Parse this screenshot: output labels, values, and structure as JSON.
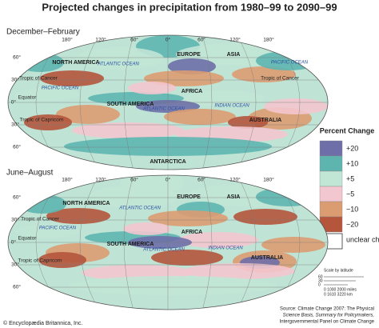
{
  "title": "Projected changes in precipitation from 1980–99 to 2090–99",
  "maps": [
    {
      "season": "December–February",
      "longitudes": [
        "180°",
        "120°",
        "60°",
        "0°",
        "60°",
        "120°",
        "180°"
      ],
      "latitudes": [
        "60°",
        "30°",
        "0°",
        "30°",
        "60°"
      ],
      "labels": [
        "NORTH AMERICA",
        "ATLANTIC OCEAN",
        "EUROPE",
        "ASIA",
        "PACIFIC OCEAN",
        "Tropic of Cancer",
        "Tropic of Cancer",
        "PACIFIC OCEAN",
        "Equator",
        "SOUTH AMERICA",
        "ATLANTIC OCEAN",
        "AFRICA",
        "INDIAN OCEAN",
        "AUSTRALIA",
        "Tropic of Capricorn",
        "ANTARCTICA"
      ]
    },
    {
      "season": "June–August",
      "longitudes": [
        "180°",
        "120°",
        "60°",
        "0°",
        "60°",
        "120°",
        "180°"
      ],
      "latitudes": [
        "60°",
        "30°",
        "0°",
        "30°",
        "60°"
      ],
      "labels": [
        "NORTH AMERICA",
        "ATLANTIC OCEAN",
        "EUROPE",
        "ASIA",
        "PACIFIC OCEAN",
        "Tropic of Cancer",
        "Equator",
        "SOUTH AMERICA",
        "ATLANTIC OCEAN",
        "AFRICA",
        "INDIAN OCEAN",
        "AUSTRALIA",
        "Tropic of Capricorn"
      ]
    }
  ],
  "legend": {
    "title": "Percent Change",
    "items": [
      "+20",
      "+10",
      "+5",
      "−5",
      "−10",
      "−20"
    ],
    "unclear": "unclear change"
  },
  "scale": {
    "title": "Scale by latitude",
    "latitudes": [
      "60",
      "30",
      "0"
    ],
    "miles": "0    1000  2000 miles",
    "km": "0    1610  3220 km"
  },
  "source": [
    "Source: Climate Change 2007: The Physical",
    "Science Basis, Summary for Policymakers,",
    "Intergovernmental Panel on Climate Change"
  ],
  "credit": "© Encyclopædia Britannica, Inc."
}
